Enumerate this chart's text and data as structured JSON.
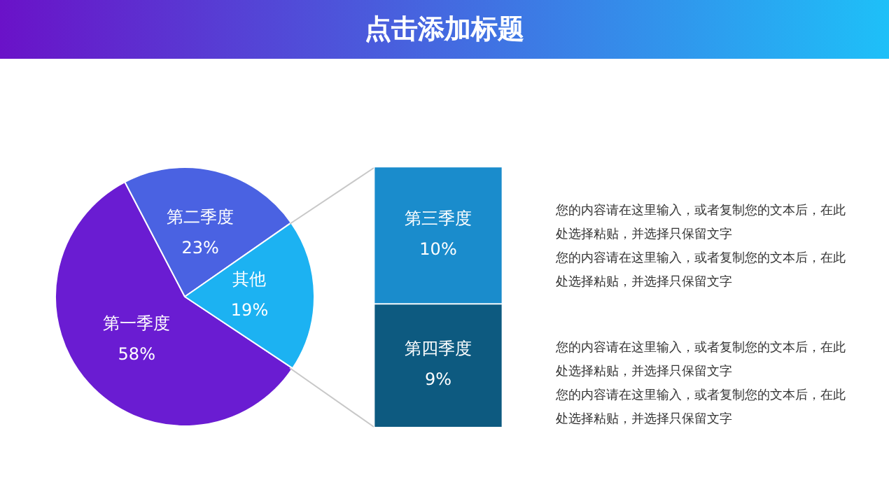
{
  "chart_data": [
    {
      "type": "pie",
      "categories": [
        "第一季度",
        "第二季度",
        "其他"
      ],
      "values": [
        58,
        23,
        19
      ],
      "colors": [
        "#6a1cd2",
        "#4a62e2",
        "#1cb2f2"
      ],
      "value_labels": [
        "58%",
        "23%",
        "19%"
      ],
      "legend": false
    },
    {
      "type": "bar",
      "title": "点击添加标题",
      "stacked": true,
      "categories": [
        null
      ],
      "legend": false,
      "series": [
        {
          "name": "第四季度",
          "color": "#0d5a80",
          "values": [
            9
          ],
          "value_labels": [
            "9%"
          ]
        },
        {
          "name": "第三季度",
          "color": "#1a8ccc",
          "values": [
            10
          ],
          "value_labels": [
            "10%"
          ]
        }
      ]
    },
    {
      "type": "other",
      "annotations": [
        "您的内容请在这里输入，或者复制您的文本后，在此处选择粘贴，并选择只保留文字",
        "您的内容请在这里输入，或者复制您的文本后，在此处选择粘贴，并选择只保留文字",
        "您的内容请在这里输入，或者复制您的文本后，在此处选择粘贴，并选择只保留文字",
        "您的内容请在这里输入，或者复制您的文本后，在此处选择粘贴，并选择只保留文字"
      ]
    }
  ]
}
